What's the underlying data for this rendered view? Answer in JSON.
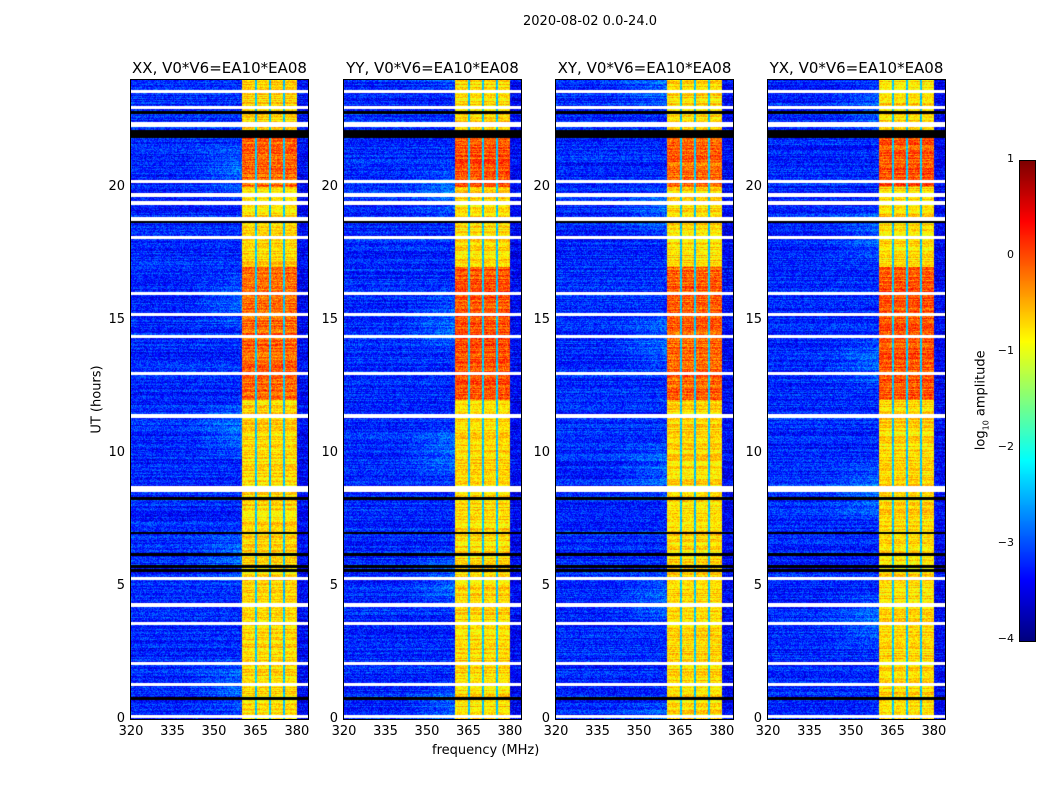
{
  "chart_data": {
    "type": "heatmap",
    "title": "2020-08-02 0.0-24.0",
    "xlabel": "frequency (MHz)",
    "ylabel": "UT (hours)",
    "xlim": [
      320,
      384
    ],
    "ylim": [
      0,
      24
    ],
    "xticks": [
      "320",
      "335",
      "350",
      "365",
      "380"
    ],
    "yticks": [
      "0",
      "5",
      "10",
      "15",
      "20"
    ],
    "panels": [
      {
        "title": "XX, V0*V6=EA10*EA08"
      },
      {
        "title": "YY, V0*V6=EA10*EA08"
      },
      {
        "title": "XY, V0*V6=EA10*EA08"
      },
      {
        "title": "YX, V0*V6=EA10*EA08"
      }
    ],
    "colorbar": {
      "label": "log",
      "label_sub": "10",
      "label_rest": " amplitude",
      "range": [
        -4,
        1
      ],
      "ticks": [
        "1",
        "0",
        "−1",
        "−2",
        "−3",
        "−4"
      ],
      "colormap": "jet"
    },
    "features": {
      "background_level": -3.2,
      "rfi_band_mhz": [
        360,
        380
      ],
      "rfi_band_level": -0.7,
      "strong_rfi_hours": [
        [
          12,
          17
        ],
        [
          20,
          22
        ]
      ],
      "notch_lines_mhz": [
        365,
        370,
        375
      ],
      "flagged_white_hours": [
        0.1,
        1.3,
        2.1,
        3.6,
        4.3,
        5.3,
        8.6,
        8.7,
        11.4,
        13.0,
        14.4,
        15.2,
        16.0,
        18.1,
        18.8,
        19.4,
        19.7,
        20.2,
        22.3,
        22.4,
        23.0,
        23.6
      ],
      "flagged_black_hours": [
        0.8,
        5.6,
        5.75,
        6.2,
        7.0,
        8.3,
        18.7,
        21.9,
        22.0,
        22.1,
        22.8
      ]
    }
  }
}
